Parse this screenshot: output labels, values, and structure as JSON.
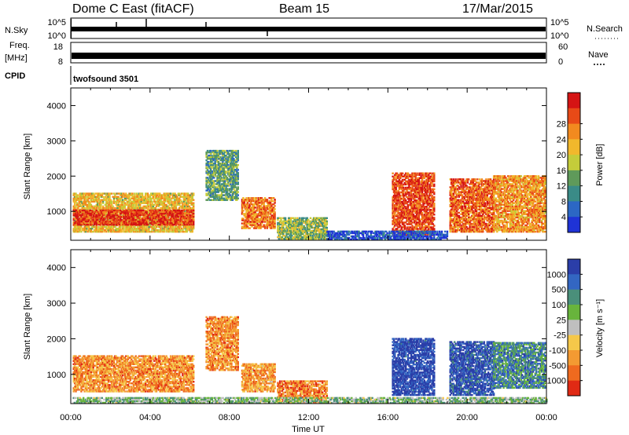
{
  "header": {
    "station": "Dome C East (fitACF)",
    "beam": "Beam 15",
    "date": "17/Mar/2015"
  },
  "top_panels": {
    "nsky_label": "N.Sky",
    "nsearch_label": "N.Search",
    "nsky_ticks": [
      "10^5",
      "10^0"
    ],
    "freq_label": "Freq.",
    "freq_unit": "[MHz]",
    "freq_ticks": [
      "18",
      "8"
    ],
    "nave_label": "Nave",
    "nave_ticks": [
      "60",
      "0"
    ],
    "cpid_label": "CPID",
    "cpid_value": "twofsound 3501"
  },
  "chart_data": [
    {
      "type": "heatmap",
      "name": "power",
      "xlabel": "",
      "ylabel": "Slant Range [km]",
      "x_range": [
        "00:00",
        "24:00"
      ],
      "y_range": [
        180,
        4500
      ],
      "y_ticks": [
        1000,
        2000,
        3000,
        4000
      ],
      "colorbar": {
        "label": "Power [dB]",
        "ticks": [
          "4",
          "8",
          "12",
          "16",
          "20",
          "24",
          "28"
        ],
        "colors": [
          "#1f33d6",
          "#2c67c4",
          "#3a8b87",
          "#5f9a5a",
          "#c4cc3a",
          "#f1b82c",
          "#f28a1f",
          "#e84a17",
          "#d51414"
        ]
      },
      "regions": [
        {
          "t0": 0.1,
          "t1": 6.2,
          "r0": 400,
          "r1": 1500,
          "level": 0.6
        },
        {
          "t0": 0.1,
          "t1": 6.2,
          "r0": 600,
          "r1": 1050,
          "level": 0.9
        },
        {
          "t0": 6.8,
          "t1": 8.4,
          "r0": 1300,
          "r1": 2700,
          "level": 0.35
        },
        {
          "t0": 8.6,
          "t1": 10.3,
          "r0": 500,
          "r1": 1400,
          "level": 0.75
        },
        {
          "t0": 10.4,
          "t1": 12.9,
          "r0": 200,
          "r1": 800,
          "level": 0.45
        },
        {
          "t0": 16.2,
          "t1": 18.3,
          "r0": 300,
          "r1": 2100,
          "level": 0.85
        },
        {
          "t0": 19.1,
          "t1": 21.3,
          "r0": 400,
          "r1": 1900,
          "level": 0.8
        },
        {
          "t0": 21.3,
          "t1": 23.9,
          "r0": 400,
          "r1": 2000,
          "level": 0.7
        },
        {
          "t0": 12.9,
          "t1": 19.0,
          "r0": 180,
          "r1": 420,
          "level": 0.1
        }
      ]
    },
    {
      "type": "heatmap",
      "name": "velocity",
      "xlabel": "Time UT",
      "ylabel": "Slant Range [km]",
      "x_range": [
        "00:00",
        "24:00"
      ],
      "x_ticks": [
        "00:00",
        "04:00",
        "08:00",
        "12:00",
        "16:00",
        "20:00",
        "00:00"
      ],
      "y_range": [
        180,
        4500
      ],
      "y_ticks": [
        1000,
        2000,
        3000,
        4000
      ],
      "colorbar": {
        "label": "Velocity [m s⁻¹]",
        "ticks": [
          "1000",
          "500",
          "100",
          "25",
          "-25",
          "-100",
          "-500",
          "-1000"
        ],
        "colors": [
          "#2b3ea8",
          "#3366c2",
          "#4a8f7a",
          "#68b43c",
          "#bfbfbf",
          "#f5c84a",
          "#f39a32",
          "#ef6a1f",
          "#e02a14"
        ]
      },
      "regions": [
        {
          "t0": 0.1,
          "t1": 6.2,
          "r0": 500,
          "r1": 1500,
          "level": 0.75
        },
        {
          "t0": 6.8,
          "t1": 8.4,
          "r0": 1100,
          "r1": 2600,
          "level": 0.75
        },
        {
          "t0": 8.6,
          "t1": 10.3,
          "r0": 500,
          "r1": 1300,
          "level": 0.72
        },
        {
          "t0": 10.4,
          "t1": 12.9,
          "r0": 200,
          "r1": 800,
          "level": 0.8
        },
        {
          "t0": 16.2,
          "t1": 18.3,
          "r0": 400,
          "r1": 2000,
          "level": 0.05
        },
        {
          "t0": 19.1,
          "t1": 21.3,
          "r0": 400,
          "r1": 1900,
          "level": 0.1
        },
        {
          "t0": 21.3,
          "t1": 23.9,
          "r0": 600,
          "r1": 1900,
          "level": 0.25
        },
        {
          "t0": 0.1,
          "t1": 24.0,
          "r0": 180,
          "r1": 360,
          "level": 0.4
        }
      ]
    }
  ]
}
